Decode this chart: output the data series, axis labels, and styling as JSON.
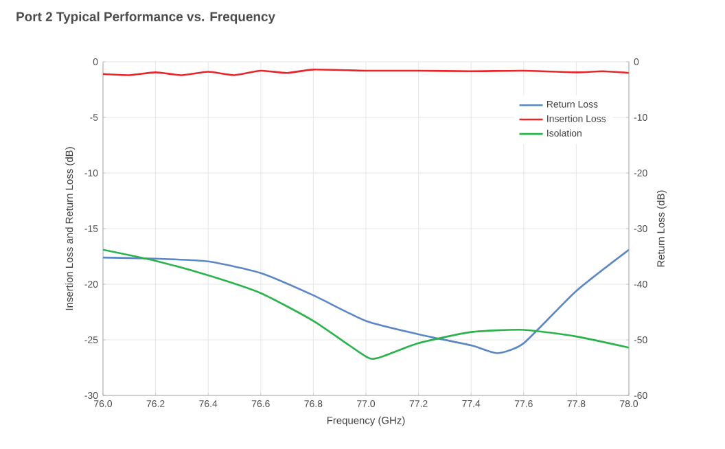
{
  "chart_data": {
    "type": "line",
    "title": "Port 2 Typical Performance vs. Frequency",
    "xlabel": "Frequency (GHz)",
    "ylabel": "Insertion Loss and Return Loss (dB)",
    "y2label": "Return Loss (dB)",
    "xlim": [
      76,
      78
    ],
    "xticks": [
      {
        "value": 76,
        "label": "76.0"
      },
      76.2,
      76.4,
      76.6,
      76.8,
      {
        "value": 77,
        "label": "77.0"
      },
      77.2,
      77.4,
      77.6,
      77.8,
      {
        "value": 78,
        "label": "78.0"
      }
    ],
    "ylim": [
      -30,
      0
    ],
    "yticks": [
      -30,
      -25,
      -20,
      -15,
      -10,
      -5,
      0
    ],
    "y2lim": [
      -60,
      0
    ],
    "y2ticks": [
      -60,
      -50,
      -40,
      -30,
      -20,
      -10,
      0
    ],
    "grid": true,
    "legend": "top right",
    "marker": "none",
    "line_style": "solid",
    "series": [
      {
        "name": "Return Loss",
        "color": "#5b87c5",
        "x": [
          76.0,
          76.2,
          76.4,
          76.6,
          76.8,
          77.0,
          77.2,
          77.4,
          77.5,
          77.6,
          77.8,
          78.0
        ],
        "values": [
          -17.6,
          -17.7,
          -17.95,
          -19.0,
          -21.0,
          -23.3,
          -24.5,
          -25.5,
          -26.2,
          -25.3,
          -20.6,
          -16.9
        ]
      },
      {
        "name": "Insertion Loss",
        "color": "#e8262a",
        "x": [
          76.0,
          76.1,
          76.2,
          76.3,
          76.4,
          76.5,
          76.6,
          76.7,
          76.8,
          77.0,
          77.2,
          77.4,
          77.6,
          77.8,
          77.9,
          78.0
        ],
        "values": [
          -1.1,
          -1.2,
          -0.95,
          -1.2,
          -0.9,
          -1.2,
          -0.8,
          -1.0,
          -0.7,
          -0.8,
          -0.8,
          -0.85,
          -0.8,
          -0.95,
          -0.85,
          -1.0
        ]
      },
      {
        "name": "Isolation",
        "color": "#2ab24b",
        "x": [
          76.0,
          76.2,
          76.4,
          76.6,
          76.8,
          77.0,
          77.05,
          77.2,
          77.4,
          77.6,
          77.8,
          78.0
        ],
        "values": [
          -16.9,
          -17.9,
          -19.2,
          -20.8,
          -23.3,
          -26.5,
          -26.6,
          -25.3,
          -24.3,
          -24.1,
          -24.7,
          -25.7
        ]
      }
    ]
  }
}
